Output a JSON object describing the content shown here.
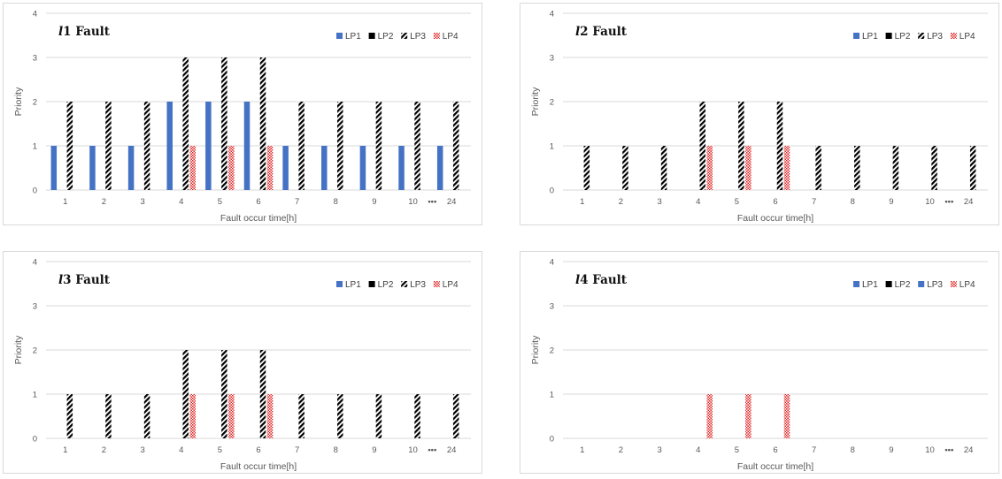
{
  "chart_data": [
    {
      "type": "bar",
      "title": {
        "italic": "l",
        "rest": "1 Fault"
      },
      "xlabel": "Fault occur time[h]",
      "ylabel": "Priority",
      "ylim": [
        0,
        4
      ],
      "yticks": [
        "0",
        "1",
        "2",
        "3",
        "4"
      ],
      "categories": [
        "1",
        "2",
        "3",
        "4",
        "5",
        "6",
        "7",
        "8",
        "9",
        "10",
        "24"
      ],
      "ellipsis": "•••",
      "legend_position": "top-right",
      "series": [
        {
          "name": "LP1",
          "pattern": "solid-blue",
          "values": [
            1,
            1,
            1,
            2,
            2,
            2,
            1,
            1,
            1,
            1,
            1
          ]
        },
        {
          "name": "LP2",
          "pattern": "solid-black",
          "values": [
            0,
            0,
            0,
            0,
            0,
            0,
            0,
            0,
            0,
            0,
            0
          ]
        },
        {
          "name": "LP3",
          "pattern": "hatch-black",
          "values": [
            2,
            2,
            2,
            3,
            3,
            3,
            2,
            2,
            2,
            2,
            2
          ]
        },
        {
          "name": "LP4",
          "pattern": "dots-red",
          "values": [
            0,
            0,
            0,
            1,
            1,
            1,
            0,
            0,
            0,
            0,
            0
          ]
        }
      ]
    },
    {
      "type": "bar",
      "title": {
        "italic": "l",
        "rest": "2 Fault"
      },
      "xlabel": "Fault occur time[h]",
      "ylabel": "Priority",
      "ylim": [
        0,
        4
      ],
      "yticks": [
        "0",
        "1",
        "2",
        "3",
        "4"
      ],
      "categories": [
        "1",
        "2",
        "3",
        "4",
        "5",
        "6",
        "7",
        "8",
        "9",
        "10",
        "24"
      ],
      "ellipsis": "•••",
      "legend_position": "top-right",
      "series": [
        {
          "name": "LP1",
          "pattern": "solid-blue",
          "values": [
            0,
            0,
            0,
            0,
            0,
            0,
            0,
            0,
            0,
            0,
            0
          ]
        },
        {
          "name": "LP2",
          "pattern": "solid-black",
          "values": [
            0,
            0,
            0,
            0,
            0,
            0,
            0,
            0,
            0,
            0,
            0
          ]
        },
        {
          "name": "LP3",
          "pattern": "hatch-black",
          "values": [
            1,
            1,
            1,
            2,
            2,
            2,
            1,
            1,
            1,
            1,
            1
          ]
        },
        {
          "name": "LP4",
          "pattern": "dots-red",
          "values": [
            0,
            0,
            0,
            1,
            1,
            1,
            0,
            0,
            0,
            0,
            0
          ]
        }
      ]
    },
    {
      "type": "bar",
      "title": {
        "italic": "l",
        "rest": "3 Fault"
      },
      "xlabel": "Fault occur time[h]",
      "ylabel": "Priority",
      "ylim": [
        0,
        4
      ],
      "yticks": [
        "0",
        "1",
        "2",
        "3",
        "4"
      ],
      "categories": [
        "1",
        "2",
        "3",
        "4",
        "5",
        "6",
        "7",
        "8",
        "9",
        "10",
        "24"
      ],
      "ellipsis": "•••",
      "legend_position": "top-right",
      "series": [
        {
          "name": "LP1",
          "pattern": "solid-blue",
          "values": [
            0,
            0,
            0,
            0,
            0,
            0,
            0,
            0,
            0,
            0,
            0
          ]
        },
        {
          "name": "LP2",
          "pattern": "solid-black",
          "values": [
            0,
            0,
            0,
            0,
            0,
            0,
            0,
            0,
            0,
            0,
            0
          ]
        },
        {
          "name": "LP3",
          "pattern": "hatch-black",
          "values": [
            1,
            1,
            1,
            2,
            2,
            2,
            1,
            1,
            1,
            1,
            1
          ]
        },
        {
          "name": "LP4",
          "pattern": "dots-red",
          "values": [
            0,
            0,
            0,
            1,
            1,
            1,
            0,
            0,
            0,
            0,
            0
          ]
        }
      ]
    },
    {
      "type": "bar",
      "title": {
        "italic": "l",
        "rest": "4 Fault"
      },
      "xlabel": "Fault occur time[h]",
      "ylabel": "Priority",
      "ylim": [
        0,
        4
      ],
      "yticks": [
        "0",
        "1",
        "2",
        "3",
        "4"
      ],
      "categories": [
        "1",
        "2",
        "3",
        "4",
        "5",
        "6",
        "7",
        "8",
        "9",
        "10",
        "24"
      ],
      "ellipsis": "•••",
      "legend_position": "top-right",
      "series": [
        {
          "name": "LP1",
          "pattern": "solid-blue",
          "values": [
            0,
            0,
            0,
            0,
            0,
            0,
            0,
            0,
            0,
            0,
            0
          ]
        },
        {
          "name": "LP2",
          "pattern": "solid-black",
          "values": [
            0,
            0,
            0,
            0,
            0,
            0,
            0,
            0,
            0,
            0,
            0
          ]
        },
        {
          "name": "LP3",
          "pattern": "solid-blue",
          "values": [
            0,
            0,
            0,
            0,
            0,
            0,
            0,
            0,
            0,
            0,
            0
          ]
        },
        {
          "name": "LP4",
          "pattern": "dots-red",
          "values": [
            0,
            0,
            0,
            1,
            1,
            1,
            0,
            0,
            0,
            0,
            0
          ]
        }
      ]
    }
  ],
  "colors": {
    "blue": "#4472c4",
    "black": "#000000",
    "red": "#e02020",
    "grid": "#d9d9d9",
    "text": "#595959"
  }
}
